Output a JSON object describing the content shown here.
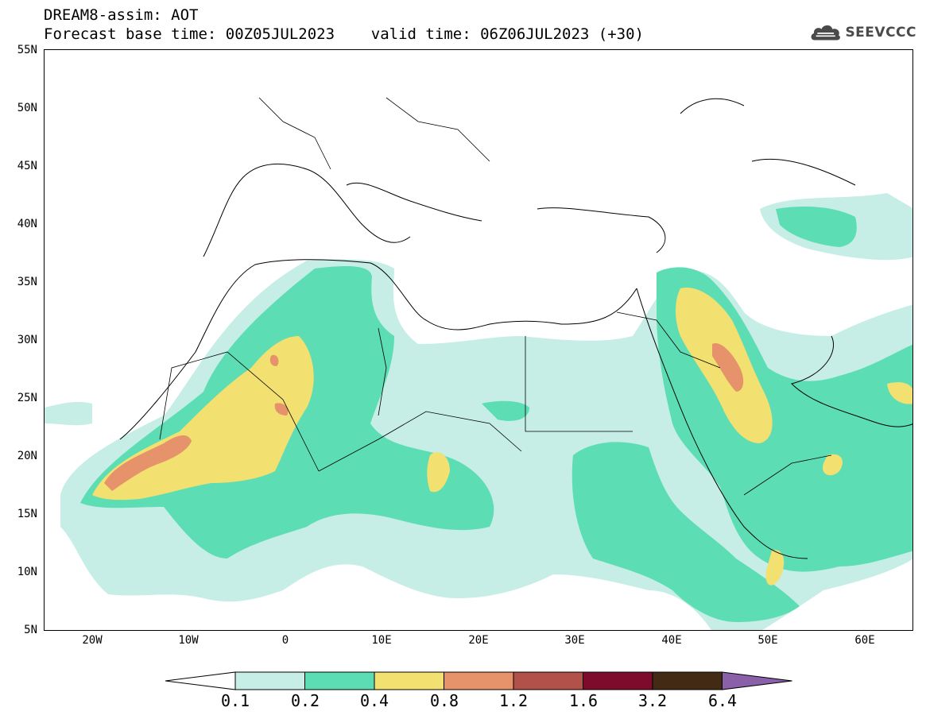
{
  "title_line1": "DREAM8-assim: AOT",
  "title_line2": "Forecast base time: 00Z05JUL2023    valid time: 06Z06JUL2023 (+30)",
  "logo_text": "SEEVCCC",
  "map": {
    "lon_range": [
      -25,
      65
    ],
    "lat_range": [
      5,
      55
    ],
    "y_ticks": [
      "55N",
      "50N",
      "45N",
      "40N",
      "35N",
      "30N",
      "25N",
      "20N",
      "15N",
      "10N",
      "5N"
    ],
    "x_ticks": [
      "20W",
      "10W",
      "0",
      "10E",
      "20E",
      "30E",
      "40E",
      "50E",
      "60E"
    ]
  },
  "colorbar": {
    "labels": [
      "0.1",
      "0.2",
      "0.4",
      "0.8",
      "1.2",
      "1.6",
      "3.2",
      "6.4"
    ],
    "colors": [
      "#ffffff",
      "#c6eee6",
      "#5dddb4",
      "#f2e070",
      "#e6926a",
      "#b2504a",
      "#7e0a2c",
      "#432a14",
      "#8a60a8"
    ]
  }
}
